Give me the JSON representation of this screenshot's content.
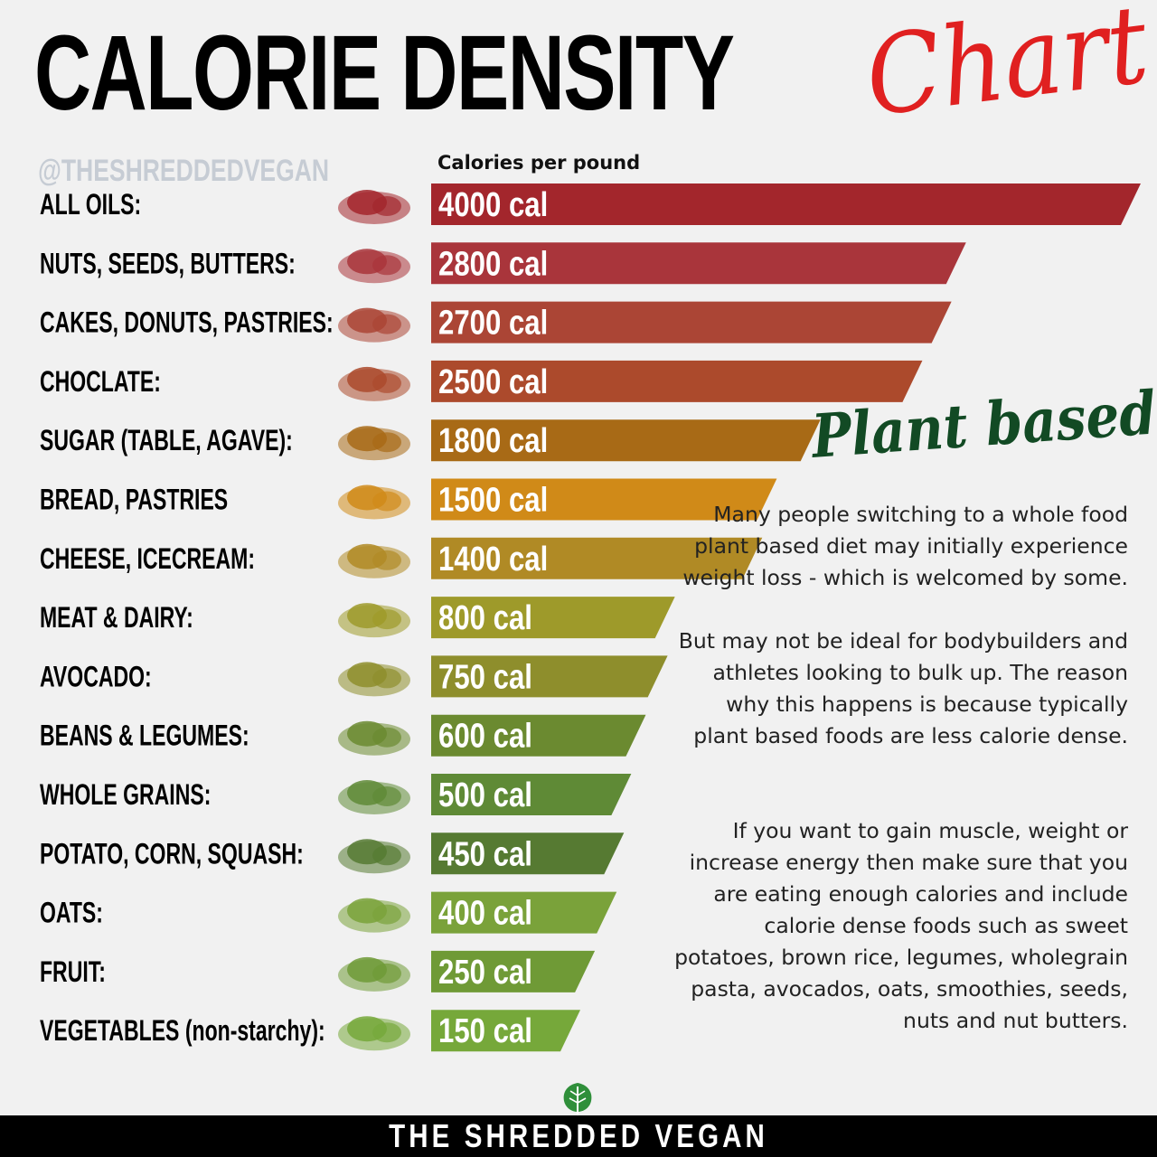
{
  "title": {
    "main": "CALORIE DENSITY",
    "script": "Chart"
  },
  "handle": "@THESHREDDEDVEGAN",
  "chart_data": {
    "type": "bar",
    "orientation": "horizontal",
    "ylabel": "Calories per pound",
    "categories": [
      "ALL OILS:",
      "NUTS, SEEDS, BUTTERS:",
      "CAKES, DONUTS, PASTRIES:",
      "CHOCLATE:",
      "SUGAR (TABLE, AGAVE):",
      "BREAD, PASTRIES",
      "CHEESE, ICECREAM:",
      "MEAT & DAIRY:",
      "AVOCADO:",
      "BEANS & LEGUMES:",
      "WHOLE GRAINS:",
      "POTATO, CORN, SQUASH:",
      "OATS:",
      "FRUIT:",
      "VEGETABLES (non-starchy):"
    ],
    "values": [
      4000,
      2800,
      2700,
      2500,
      1800,
      1500,
      1400,
      800,
      750,
      600,
      500,
      450,
      400,
      250,
      150
    ],
    "value_labels": [
      "4000 cal",
      "2800 cal",
      "2700 cal",
      "2500 cal",
      "1800 cal",
      "1500 cal",
      "1400 cal",
      "800 cal",
      "750 cal",
      "600 cal",
      "500 cal",
      "450 cal",
      "400 cal",
      "250 cal",
      "150 cal"
    ],
    "colors": [
      "#a3262c",
      "#a9353b",
      "#ab4535",
      "#ac4a2c",
      "#a86a16",
      "#d08a18",
      "#b08a25",
      "#9e9a2a",
      "#8e8e2c",
      "#6b8a30",
      "#5f8a36",
      "#567a32",
      "#7aa23a",
      "#6f9a36",
      "#76a83a"
    ],
    "icons": [
      "olive-oil-bottle-icon",
      "nuts-seeds-icon",
      "donut-icon",
      "chocolate-icon",
      "agave-syrup-icon",
      "bread-loaf-icon",
      "cheese-icon",
      "meat-icon",
      "avocado-icon",
      "beans-lentils-icon",
      "whole-grains-icon",
      "sweet-potato-icon",
      "oats-icon",
      "banana-icon",
      "broccoli-icon"
    ],
    "legend": "none",
    "grid": false
  },
  "aside": {
    "heading": "Plant based",
    "p1": "Many people switching to a whole food plant based diet may initially experience weight loss - which is welcomed by some.",
    "p2": "But may not be ideal for bodybuilders and athletes looking to bulk up. The reason why this happens is because typically plant based foods are less calorie dense.",
    "p3": "If you want to gain muscle, weight or increase energy then make sure that you are eating enough calories and include calorie dense foods such as sweet potatoes, brown rice, legumes, wholegrain pasta, avocados, oats, smoothies, seeds, nuts and nut butters."
  },
  "footer": "THE SHREDDED VEGAN"
}
